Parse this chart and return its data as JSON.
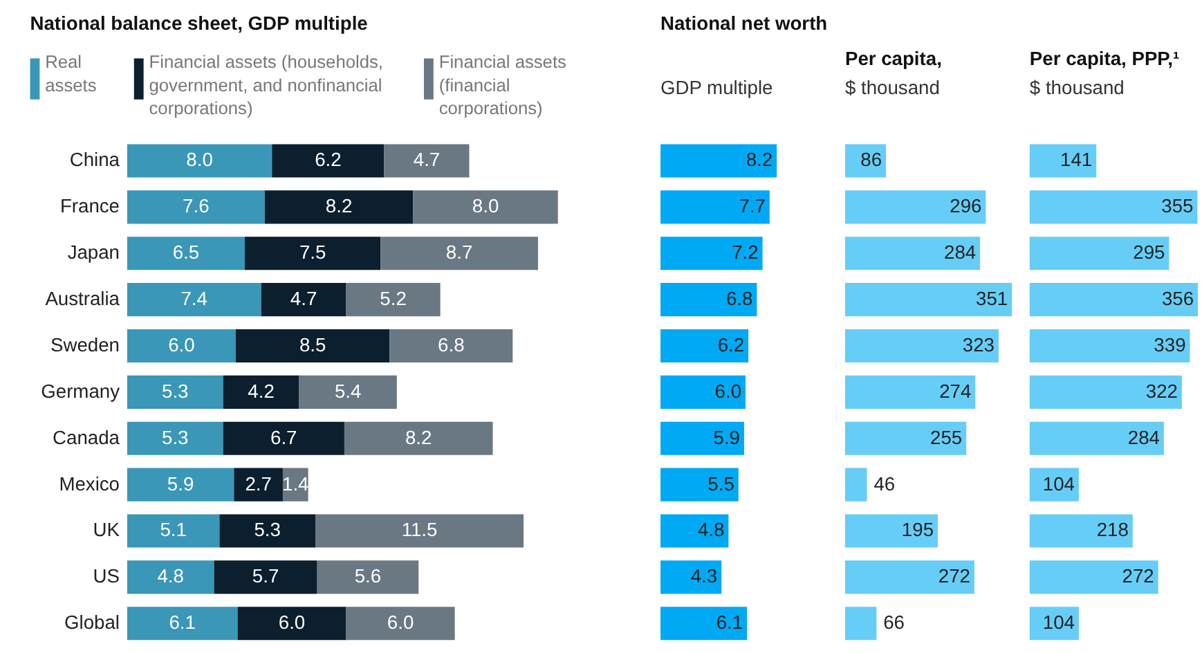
{
  "chart_data": [
    {
      "type": "bar",
      "orientation": "horizontal",
      "stacked": true,
      "title": "National balance sheet, GDP multiple",
      "categories": [
        "China",
        "France",
        "Japan",
        "Australia",
        "Sweden",
        "Germany",
        "Canada",
        "Mexico",
        "UK",
        "US",
        "Global"
      ],
      "series": [
        {
          "name": "Real assets",
          "color": "#3a97b8",
          "values": [
            8.0,
            7.6,
            6.5,
            7.4,
            6.0,
            5.3,
            5.3,
            5.9,
            5.1,
            4.8,
            6.1
          ],
          "value_labels": [
            "8.0",
            "7.6",
            "6.5",
            "7.4",
            "6.0",
            "5.3",
            "5.3",
            "5.9",
            "5.1",
            "4.8",
            "6.1"
          ]
        },
        {
          "name": "Financial assets (households, government, and nonfinancial corporations)",
          "color": "#0b1f2e",
          "values": [
            6.2,
            8.2,
            7.5,
            4.7,
            8.5,
            4.2,
            6.7,
            2.7,
            5.3,
            5.7,
            6.0
          ],
          "value_labels": [
            "6.2",
            "8.2",
            "7.5",
            "4.7",
            "8.5",
            "4.2",
            "6.7",
            "2.7",
            "5.3",
            "5.7",
            "6.0"
          ]
        },
        {
          "name": "Financial assets (financial corporations)",
          "color": "#6a7884",
          "values": [
            4.7,
            8.0,
            8.7,
            5.2,
            6.8,
            5.4,
            8.2,
            1.4,
            11.5,
            5.6,
            6.0
          ],
          "value_labels": [
            "4.7",
            "8.0",
            "8.7",
            "5.2",
            "6.8",
            "5.4",
            "8.2",
            "1.4",
            "11.5",
            "5.6",
            "6.0"
          ]
        }
      ],
      "legend": "top",
      "tick_labels": "y"
    },
    {
      "type": "bar",
      "orientation": "horizontal",
      "title": "National net worth",
      "subtitle": "GDP multiple",
      "categories": [
        "China",
        "France",
        "Japan",
        "Australia",
        "Sweden",
        "Germany",
        "Canada",
        "Mexico",
        "UK",
        "US",
        "Global"
      ],
      "values": [
        8.2,
        7.7,
        7.2,
        6.8,
        6.2,
        6.0,
        5.9,
        5.5,
        4.8,
        4.3,
        6.1
      ],
      "value_labels": [
        "8.2",
        "7.7",
        "7.2",
        "6.8",
        "6.2",
        "6.0",
        "5.9",
        "5.5",
        "4.8",
        "4.3",
        "6.1"
      ],
      "color": "#00a9f4",
      "tick_labels": false
    },
    {
      "type": "bar",
      "orientation": "horizontal",
      "title": "Per capita,",
      "subtitle": "$ thousand",
      "categories": [
        "China",
        "France",
        "Japan",
        "Australia",
        "Sweden",
        "Germany",
        "Canada",
        "Mexico",
        "UK",
        "US",
        "Global"
      ],
      "values": [
        86,
        296,
        284,
        351,
        323,
        274,
        255,
        46,
        195,
        272,
        66
      ],
      "value_labels": [
        "86",
        "296",
        "284",
        "351",
        "323",
        "274",
        "255",
        "46",
        "195",
        "272",
        "66"
      ],
      "color": "#66cdf7",
      "tick_labels": false
    },
    {
      "type": "bar",
      "orientation": "horizontal",
      "title": "Per capita, PPP,¹",
      "subtitle": "$ thousand",
      "categories": [
        "China",
        "France",
        "Japan",
        "Australia",
        "Sweden",
        "Germany",
        "Canada",
        "Mexico",
        "UK",
        "US",
        "Global"
      ],
      "values": [
        141,
        355,
        295,
        356,
        339,
        322,
        284,
        104,
        218,
        272,
        104
      ],
      "value_labels": [
        "141",
        "355",
        "295",
        "356",
        "339",
        "322",
        "284",
        "104",
        "218",
        "272",
        "104"
      ],
      "color": "#66cdf7",
      "tick_labels": false
    }
  ]
}
